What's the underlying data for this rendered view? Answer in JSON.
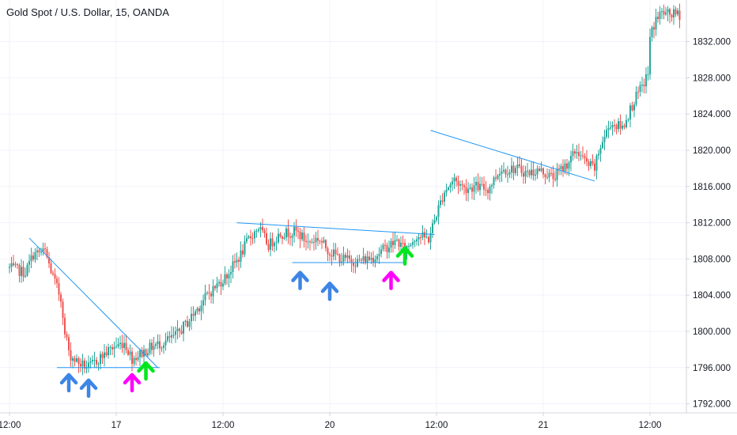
{
  "title": "Gold Spot / U.S. Dollar, 15, OANDA",
  "colors": {
    "up": "#26a69a",
    "down": "#ef5350",
    "grid": "#f0f3fa",
    "axis": "#d1d4dc",
    "trendline": "#2196f3",
    "arrow_blue": "#3d85e6",
    "arrow_magenta": "#ff00ff",
    "arrow_green": "#00e61e"
  },
  "chart_data": {
    "type": "candlestick",
    "symbol": "Gold Spot / U.S. Dollar",
    "interval": "15",
    "source": "OANDA",
    "y_ticks": [
      "1792.000",
      "1796.000",
      "1800.000",
      "1804.000",
      "1808.000",
      "1812.000",
      "1816.000",
      "1820.000",
      "1824.000",
      "1828.000",
      "1832.000"
    ],
    "y_tick_values": [
      1792,
      1796,
      1800,
      1804,
      1808,
      1812,
      1816,
      1820,
      1824,
      1828,
      1832
    ],
    "ylim": [
      1791,
      1836.6
    ],
    "x_ticks": [
      "12:00",
      "17",
      "12:00",
      "20",
      "12:00",
      "21",
      "12:00"
    ],
    "x_tick_index": [
      0,
      54,
      108,
      162,
      216,
      270,
      324
    ],
    "bar_count": 340,
    "anchors": [
      [
        0,
        1807.0
      ],
      [
        8,
        1806.5
      ],
      [
        12,
        1808.5
      ],
      [
        18,
        1808.8
      ],
      [
        22,
        1806.0
      ],
      [
        27,
        1803.0
      ],
      [
        30,
        1797.5
      ],
      [
        35,
        1796.5
      ],
      [
        40,
        1796.0
      ],
      [
        48,
        1797.5
      ],
      [
        52,
        1798.2
      ],
      [
        58,
        1798.8
      ],
      [
        62,
        1797.0
      ],
      [
        66,
        1797.5
      ],
      [
        72,
        1798.3
      ],
      [
        78,
        1798.8
      ],
      [
        84,
        1799.5
      ],
      [
        90,
        1801.0
      ],
      [
        100,
        1804.0
      ],
      [
        110,
        1806.2
      ],
      [
        117,
        1808.5
      ],
      [
        121,
        1810.2
      ],
      [
        126,
        1811.5
      ],
      [
        131,
        1809.5
      ],
      [
        137,
        1810.8
      ],
      [
        145,
        1811.0
      ],
      [
        151,
        1809.8
      ],
      [
        156,
        1810.3
      ],
      [
        162,
        1808.8
      ],
      [
        168,
        1808.0
      ],
      [
        176,
        1807.7
      ],
      [
        184,
        1808.2
      ],
      [
        190,
        1809.2
      ],
      [
        196,
        1810.0
      ],
      [
        200,
        1809.0
      ],
      [
        206,
        1810.6
      ],
      [
        212,
        1810.2
      ],
      [
        216,
        1813.0
      ],
      [
        220,
        1815.5
      ],
      [
        225,
        1816.8
      ],
      [
        230,
        1815.8
      ],
      [
        236,
        1816.0
      ],
      [
        242,
        1815.7
      ],
      [
        248,
        1817.8
      ],
      [
        256,
        1818.0
      ],
      [
        262,
        1817.5
      ],
      [
        268,
        1817.8
      ],
      [
        275,
        1817.0
      ],
      [
        282,
        1818.5
      ],
      [
        287,
        1820.0
      ],
      [
        292,
        1818.5
      ],
      [
        296,
        1818.0
      ],
      [
        299,
        1820.5
      ],
      [
        304,
        1823.0
      ],
      [
        310,
        1822.5
      ],
      [
        316,
        1825.5
      ],
      [
        320,
        1827.0
      ],
      [
        323,
        1828.5
      ],
      [
        324,
        1832.5
      ],
      [
        327,
        1834.5
      ],
      [
        330,
        1835.2
      ],
      [
        333,
        1835.0
      ]
    ],
    "trendlines": [
      {
        "from": [
          10,
          1810.3
        ],
        "to": [
          75,
          1796.0
        ]
      },
      {
        "from": [
          24,
          1796.0
        ],
        "to": [
          76,
          1796.0
        ]
      },
      {
        "from": [
          115,
          1812.0
        ],
        "to": [
          215,
          1810.7
        ]
      },
      {
        "from": [
          143,
          1807.6
        ],
        "to": [
          200,
          1807.6
        ]
      },
      {
        "from": [
          213,
          1822.2
        ],
        "to": [
          296,
          1816.6
        ]
      }
    ],
    "arrows": [
      {
        "color": "blue",
        "index": 30,
        "price": 1795.2
      },
      {
        "color": "blue",
        "index": 40,
        "price": 1794.6
      },
      {
        "color": "magenta",
        "index": 62,
        "price": 1795.2
      },
      {
        "color": "green",
        "index": 69,
        "price": 1796.5
      },
      {
        "color": "blue",
        "index": 147,
        "price": 1806.5
      },
      {
        "color": "blue",
        "index": 162,
        "price": 1805.3
      },
      {
        "color": "magenta",
        "index": 193,
        "price": 1806.5
      },
      {
        "color": "green",
        "index": 200,
        "price": 1809.2
      }
    ]
  }
}
